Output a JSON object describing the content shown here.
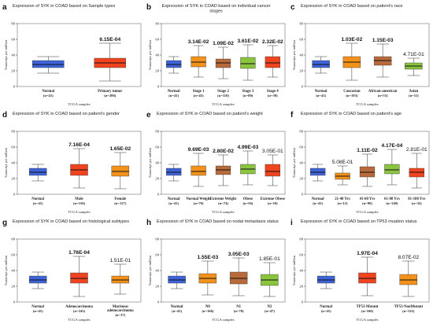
{
  "figure": {
    "y_axis_label": "Transcript per million",
    "x_axis_label": "TCGA samples"
  },
  "chart_data": [
    {
      "type": "box",
      "panel": "a",
      "title": "Expression of SYK in COAD based on Sample types",
      "ylim": [
        0,
        80
      ],
      "yticks": [
        0,
        20,
        40,
        60,
        80
      ],
      "xlabel": "TCGA samples",
      "ylabel": "Transcript per million",
      "categories": [
        {
          "name": "Normal",
          "n": "(n=41)",
          "color": "#3F63D9",
          "min": 17,
          "q1": 24,
          "median": 28,
          "q3": 33,
          "max": 38
        },
        {
          "name": "Primary tumor",
          "n": "(n=286)",
          "color": "#F0431F",
          "min": 7,
          "q1": 24,
          "median": 30,
          "q3": 36,
          "max": 55,
          "pvalue": "6.15E-04",
          "significant": true
        }
      ]
    },
    {
      "type": "box",
      "panel": "b",
      "title": "Expression of SYK in COAD based on individual cancer stages",
      "ylim": [
        0,
        80
      ],
      "yticks": [
        0,
        20,
        40,
        60,
        80
      ],
      "xlabel": "TCGA samples",
      "ylabel": "Transcript per million",
      "categories": [
        {
          "name": "Normal",
          "n": "(n=41)",
          "color": "#3F63D9",
          "min": 17,
          "q1": 24,
          "median": 28,
          "q3": 33,
          "max": 38
        },
        {
          "name": "Stage 1",
          "n": "(n=45)",
          "color": "#F2921A",
          "min": 12,
          "q1": 25,
          "median": 31,
          "q3": 38,
          "max": 52,
          "pvalue": "3.14E-02",
          "significant": true
        },
        {
          "name": "Stage 2",
          "n": "(n=110)",
          "color": "#B96A3A",
          "min": 10,
          "q1": 24,
          "median": 30,
          "q3": 35,
          "max": 50,
          "pvalue": "1.09E-02",
          "significant": true
        },
        {
          "name": "Stage 3",
          "n": "(n=80)",
          "color": "#8BC43F",
          "min": 8,
          "q1": 23,
          "median": 29,
          "q3": 37,
          "max": 53,
          "pvalue": "3.61E-02",
          "significant": true
        },
        {
          "name": "Stage 4",
          "n": "(n=39)",
          "color": "#F0431F",
          "min": 12,
          "q1": 24,
          "median": 30,
          "q3": 38,
          "max": 52,
          "pvalue": "2.32E-02",
          "significant": true
        }
      ]
    },
    {
      "type": "box",
      "panel": "c",
      "title": "Expression of SYK in COAD based on patient's race",
      "ylim": [
        0,
        80
      ],
      "yticks": [
        0,
        20,
        40,
        60,
        80
      ],
      "xlabel": "TCGA samples",
      "ylabel": "Transcript per million",
      "categories": [
        {
          "name": "Normal",
          "n": "(n=41)",
          "color": "#3F63D9",
          "min": 17,
          "q1": 24,
          "median": 28,
          "q3": 33,
          "max": 38
        },
        {
          "name": "Caucasian",
          "n": "(n=193)",
          "color": "#F2921A",
          "min": 8,
          "q1": 24,
          "median": 31,
          "q3": 38,
          "max": 55,
          "pvalue": "1.03E-02",
          "significant": true
        },
        {
          "name": "African-american",
          "n": "(n=55)",
          "color": "#B96A3A",
          "min": 12,
          "q1": 27,
          "median": 33,
          "q3": 38,
          "max": 54,
          "pvalue": "1.15E-03",
          "significant": true
        },
        {
          "name": "Asian",
          "n": "(n=11)",
          "color": "#8BC43F",
          "min": 14,
          "q1": 22,
          "median": 26,
          "q3": 30,
          "max": 36,
          "pvalue": "4.71E-01",
          "significant": false
        }
      ]
    },
    {
      "type": "box",
      "panel": "d",
      "title": "Expression of SYK in COAD based on patient's gender",
      "ylim": [
        0,
        80
      ],
      "yticks": [
        0,
        20,
        40,
        60,
        80
      ],
      "xlabel": "TCGA samples",
      "ylabel": "Transcript per million",
      "categories": [
        {
          "name": "Normal",
          "n": "(n=41)",
          "color": "#3F63D9",
          "min": 17,
          "q1": 24,
          "median": 28,
          "q3": 33,
          "max": 38
        },
        {
          "name": "Male",
          "n": "(n=156)",
          "color": "#F0431F",
          "min": 8,
          "q1": 24,
          "median": 31,
          "q3": 38,
          "max": 58,
          "pvalue": "7.16E-04",
          "significant": true
        },
        {
          "name": "Female",
          "n": "(n=127)",
          "color": "#F2921A",
          "min": 7,
          "q1": 23,
          "median": 29,
          "q3": 36,
          "max": 53,
          "pvalue": "1.65E-02",
          "significant": true
        }
      ]
    },
    {
      "type": "box",
      "panel": "e",
      "title": "Expression of SYK in COAD based on patient's weight",
      "ylim": [
        0,
        80
      ],
      "yticks": [
        0,
        20,
        40,
        60,
        80
      ],
      "xlabel": "TCGA samples",
      "ylabel": "Transcript per million",
      "categories": [
        {
          "name": "Normal",
          "n": "(n=41)",
          "color": "#3F63D9",
          "min": 17,
          "q1": 24,
          "median": 28,
          "q3": 33,
          "max": 38
        },
        {
          "name": "Normal Weight",
          "n": "(n=70)",
          "color": "#F2921A",
          "min": 10,
          "q1": 24,
          "median": 29,
          "q3": 36,
          "max": 52,
          "pvalue": "9.69E-03",
          "significant": true
        },
        {
          "name": "Extreme Weight",
          "n": "(n=74)",
          "color": "#B96A3A",
          "min": 11,
          "q1": 25,
          "median": 31,
          "q3": 36,
          "max": 50,
          "pvalue": "2.80E-02",
          "significant": true
        },
        {
          "name": "Obese",
          "n": "(n=56)",
          "color": "#8BC43F",
          "min": 12,
          "q1": 26,
          "median": 32,
          "q3": 38,
          "max": 55,
          "pvalue": "4.99E-03",
          "significant": true
        },
        {
          "name": "Extreme Obese",
          "n": "(n=10)",
          "color": "#F0431F",
          "min": 11,
          "q1": 23,
          "median": 29,
          "q3": 38,
          "max": 50,
          "pvalue": "3.05E-01",
          "significant": false
        }
      ]
    },
    {
      "type": "box",
      "panel": "f",
      "title": "Expression of SYK in COAD based on patient's age",
      "ylim": [
        0,
        80
      ],
      "yticks": [
        0,
        20,
        40,
        60,
        80
      ],
      "xlabel": "TCGA samples",
      "ylabel": "Transcript per million",
      "categories": [
        {
          "name": "Normal",
          "n": "(n=41)",
          "color": "#3F63D9",
          "min": 17,
          "q1": 24,
          "median": 28,
          "q3": 33,
          "max": 38
        },
        {
          "name": "21-40 Yrs",
          "n": "(n=12)",
          "color": "#F2921A",
          "min": 12,
          "q1": 19,
          "median": 23,
          "q3": 27,
          "max": 36,
          "pvalue": "5.08E-01",
          "significant": false
        },
        {
          "name": "41-60 Yrs",
          "n": "(n=90)",
          "color": "#B96A3A",
          "min": 10,
          "q1": 22,
          "median": 28,
          "q3": 35,
          "max": 51,
          "pvalue": "1.11E-02",
          "significant": true
        },
        {
          "name": "61-80 Yrs",
          "n": "(n=149)",
          "color": "#8BC43F",
          "min": 12,
          "q1": 26,
          "median": 31,
          "q3": 38,
          "max": 57,
          "pvalue": "4.17E-04",
          "significant": true
        },
        {
          "name": "81-100 Yrs",
          "n": "(n=32)",
          "color": "#F0431F",
          "min": 8,
          "q1": 22,
          "median": 28,
          "q3": 33,
          "max": 52,
          "pvalue": "2.81E-01",
          "significant": false
        }
      ]
    },
    {
      "type": "box",
      "panel": "g",
      "title": "Expression of SYK in COAD based on histological subtypes",
      "ylim": [
        0,
        80
      ],
      "yticks": [
        0,
        20,
        40,
        60,
        80
      ],
      "xlabel": "TCGA samples",
      "ylabel": "Transcript per million",
      "categories": [
        {
          "name": "Normal",
          "n": "(n=41)",
          "color": "#3F63D9",
          "min": 17,
          "q1": 24,
          "median": 28,
          "q3": 33,
          "max": 38
        },
        {
          "name": "Adenocarcinoma",
          "n": "(n=243)",
          "color": "#F0431F",
          "min": 7,
          "q1": 24,
          "median": 30,
          "q3": 37,
          "max": 58,
          "pvalue": "1.76E-04",
          "significant": true
        },
        {
          "name": "Mucinous adenocarcinoma",
          "n": "(n=37)",
          "color": "#F2921A",
          "min": 10,
          "q1": 24,
          "median": 28,
          "q3": 33,
          "max": 48,
          "pvalue": "1.51E-01",
          "significant": false
        }
      ]
    },
    {
      "type": "box",
      "panel": "h",
      "title": "Expression of SYK in COAD based on nodal metastasis status",
      "ylim": [
        0,
        80
      ],
      "yticks": [
        0,
        20,
        40,
        60,
        80
      ],
      "xlabel": "TCGA samples",
      "ylabel": "Transcript per million",
      "categories": [
        {
          "name": "Normal",
          "n": "(n=41)",
          "color": "#3F63D9",
          "min": 17,
          "q1": 24,
          "median": 28,
          "q3": 33,
          "max": 38
        },
        {
          "name": "N0",
          "n": "(n=166)",
          "color": "#F2921A",
          "min": 9,
          "q1": 24,
          "median": 30,
          "q3": 36,
          "max": 52,
          "pvalue": "1.55E-03",
          "significant": true
        },
        {
          "name": "N1",
          "n": "(n=70)",
          "color": "#B96A3A",
          "min": 8,
          "q1": 23,
          "median": 30,
          "q3": 38,
          "max": 56,
          "pvalue": "3.05E-03",
          "significant": true
        },
        {
          "name": "N2",
          "n": "(n=47)",
          "color": "#8BC43F",
          "min": 7,
          "q1": 21,
          "median": 28,
          "q3": 35,
          "max": 50,
          "pvalue": "1.85E-01",
          "significant": false
        }
      ]
    },
    {
      "type": "box",
      "panel": "i",
      "title": "Expression of SYK in COAD based on TP53 muation status",
      "ylim": [
        0,
        80
      ],
      "yticks": [
        0,
        20,
        40,
        60,
        80
      ],
      "xlabel": "TCGA samples",
      "ylabel": "Transcript per million",
      "categories": [
        {
          "name": "Normal",
          "n": "(n=41)",
          "color": "#3F63D9",
          "min": 17,
          "q1": 24,
          "median": 28,
          "q3": 33,
          "max": 38
        },
        {
          "name": "TP53-Mutant",
          "n": "(n=160)",
          "color": "#F0431F",
          "min": 8,
          "q1": 24,
          "median": 30,
          "q3": 37,
          "max": 57,
          "pvalue": "1.97E-04",
          "significant": true
        },
        {
          "name": "TP53-NonMutant",
          "n": "(n=122)",
          "color": "#F2921A",
          "min": 7,
          "q1": 22,
          "median": 28,
          "q3": 35,
          "max": 52,
          "pvalue": "8.07E-02",
          "significant": false
        }
      ]
    }
  ]
}
